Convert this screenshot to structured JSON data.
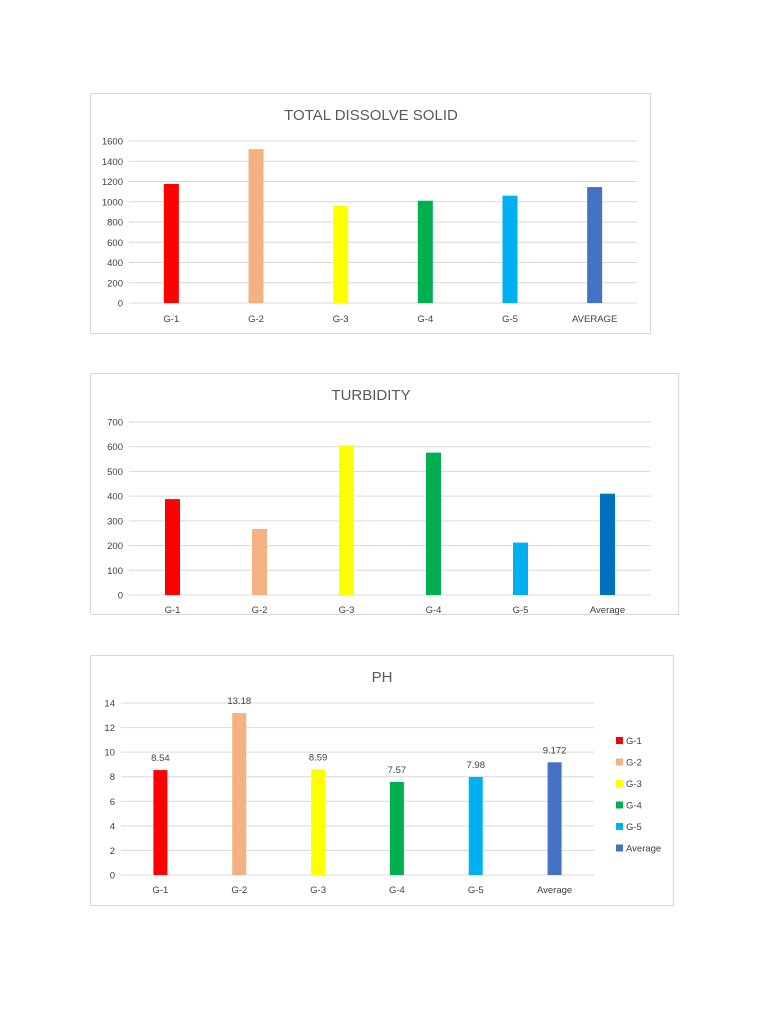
{
  "chart_data": [
    {
      "id": "tds",
      "type": "bar",
      "title": "TOTAL DISSOLVE SOLID",
      "categories": [
        "G-1",
        "G-2",
        "G-3",
        "G-4",
        "G-5",
        "AVERAGE"
      ],
      "values": [
        1175,
        1520,
        960,
        1010,
        1060,
        1145
      ],
      "colors": [
        "#ff0000",
        "#f4b183",
        "#ffff00",
        "#00b050",
        "#00b0f0",
        "#4472c4"
      ],
      "ylim": [
        0,
        1600
      ],
      "yticks": [
        "0",
        "200",
        "400",
        "600",
        "800",
        "1000",
        "1200",
        "1400",
        "1600"
      ],
      "grid": true,
      "data_labels": [],
      "legend": []
    },
    {
      "id": "turbidity",
      "type": "bar",
      "title": "TURBIDITY",
      "categories": [
        "G-1",
        "G-2",
        "G-3",
        "G-4",
        "G-5",
        "Average"
      ],
      "values": [
        388,
        267,
        605,
        576,
        212,
        410
      ],
      "colors": [
        "#ff0000",
        "#f4b183",
        "#ffff00",
        "#00b050",
        "#00b0f0",
        "#0070c0"
      ],
      "ylim": [
        0,
        700
      ],
      "yticks": [
        "0",
        "100",
        "200",
        "300",
        "400",
        "500",
        "600",
        "700"
      ],
      "grid": true,
      "data_labels": [],
      "legend": []
    },
    {
      "id": "ph",
      "type": "bar",
      "title": "PH",
      "categories": [
        "G-1",
        "G-2",
        "G-3",
        "G-4",
        "G-5",
        "Average"
      ],
      "values": [
        8.54,
        13.18,
        8.59,
        7.57,
        7.98,
        9.172
      ],
      "colors": [
        "#ff0000",
        "#f4b183",
        "#ffff00",
        "#00b050",
        "#00b0f0",
        "#4472c4"
      ],
      "ylim": [
        0,
        14
      ],
      "yticks": [
        "0",
        "2",
        "4",
        "6",
        "8",
        "10",
        "12",
        "14"
      ],
      "grid": true,
      "data_labels": [
        "8.54",
        "13.18",
        "8.59",
        "7.57",
        "7.98",
        "9.172"
      ],
      "legend": [
        "G-1",
        "G-2",
        "G-3",
        "G-4",
        "G-5",
        "Average"
      ],
      "legend_position": "right"
    }
  ]
}
